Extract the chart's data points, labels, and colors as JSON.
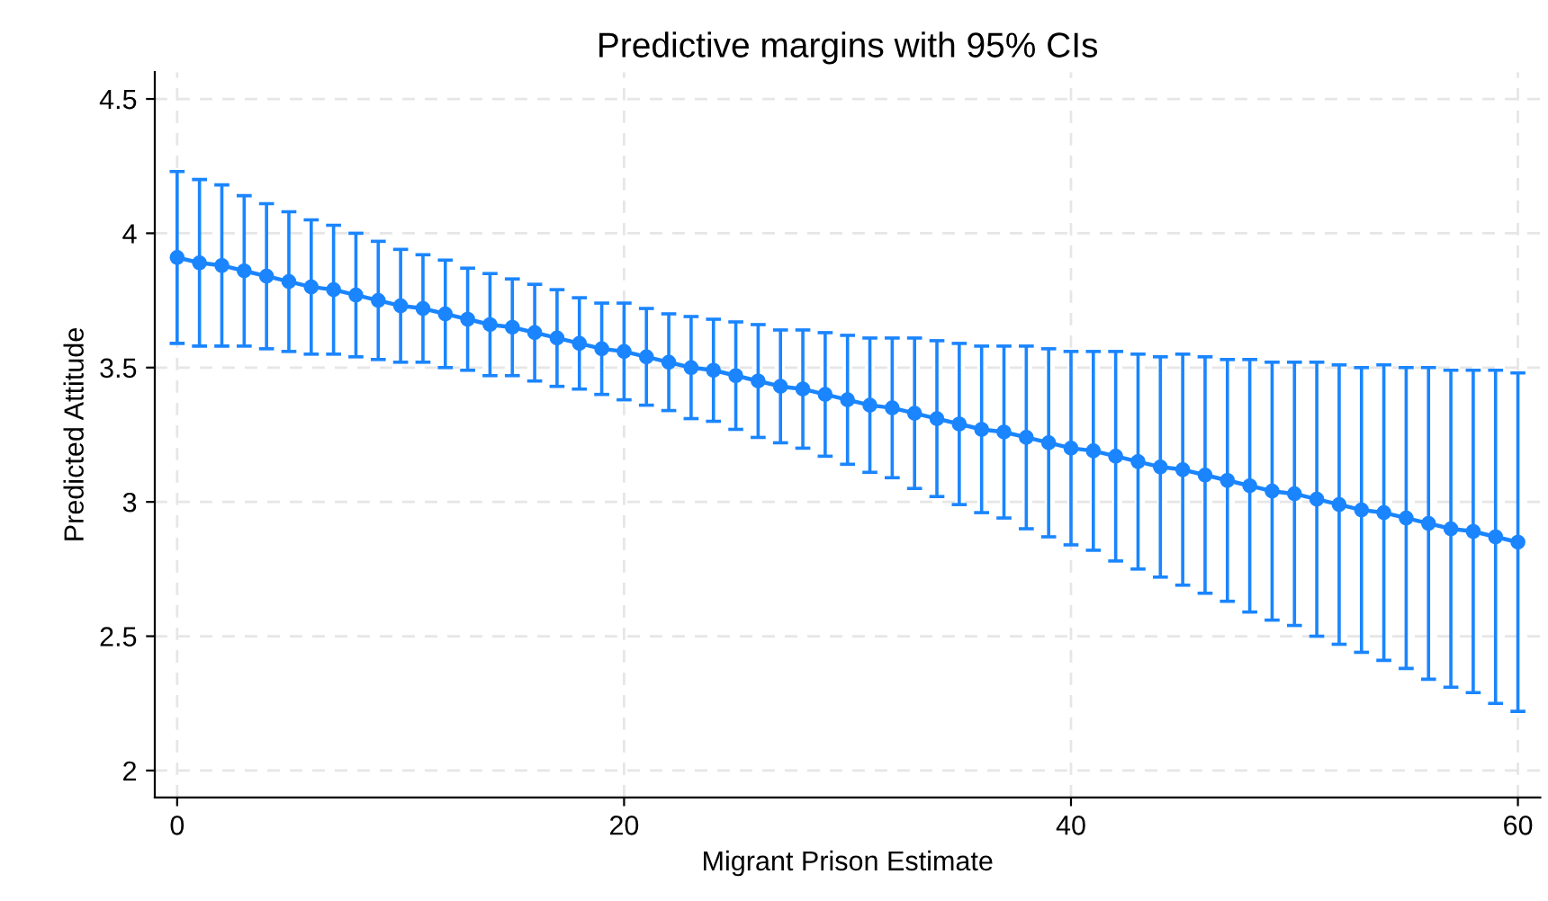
{
  "chart_data": {
    "type": "line",
    "title": "Predictive margins with 95% CIs",
    "xlabel": "Migrant Prison Estimate",
    "ylabel": "Predicted Attitude",
    "x": [
      0,
      1,
      2,
      3,
      4,
      5,
      6,
      7,
      8,
      9,
      10,
      11,
      12,
      13,
      14,
      15,
      16,
      17,
      18,
      19,
      20,
      21,
      22,
      23,
      24,
      25,
      26,
      27,
      28,
      29,
      30,
      31,
      32,
      33,
      34,
      35,
      36,
      37,
      38,
      39,
      40,
      41,
      42,
      43,
      44,
      45,
      46,
      47,
      48,
      49,
      50,
      51,
      52,
      53,
      54,
      55,
      56,
      57,
      58,
      59,
      60
    ],
    "series": [
      {
        "color": "#1a85ff",
        "marker": "circle",
        "line_style": "solid",
        "values": [
          3.91,
          3.89,
          3.88,
          3.86,
          3.84,
          3.82,
          3.8,
          3.79,
          3.77,
          3.75,
          3.73,
          3.72,
          3.7,
          3.68,
          3.66,
          3.65,
          3.63,
          3.61,
          3.59,
          3.57,
          3.56,
          3.54,
          3.52,
          3.5,
          3.49,
          3.47,
          3.45,
          3.43,
          3.42,
          3.4,
          3.38,
          3.36,
          3.35,
          3.33,
          3.31,
          3.29,
          3.27,
          3.26,
          3.24,
          3.22,
          3.2,
          3.19,
          3.17,
          3.15,
          3.13,
          3.12,
          3.1,
          3.08,
          3.06,
          3.04,
          3.03,
          3.01,
          2.99,
          2.97,
          2.96,
          2.94,
          2.92,
          2.9,
          2.89,
          2.87,
          2.85
        ],
        "errors": [
          0.32,
          0.31,
          0.3,
          0.28,
          0.27,
          0.26,
          0.25,
          0.24,
          0.23,
          0.22,
          0.21,
          0.2,
          0.2,
          0.19,
          0.19,
          0.18,
          0.18,
          0.18,
          0.17,
          0.17,
          0.18,
          0.18,
          0.18,
          0.19,
          0.19,
          0.2,
          0.21,
          0.21,
          0.22,
          0.23,
          0.24,
          0.25,
          0.26,
          0.28,
          0.29,
          0.3,
          0.31,
          0.32,
          0.34,
          0.35,
          0.36,
          0.37,
          0.39,
          0.4,
          0.41,
          0.43,
          0.44,
          0.45,
          0.47,
          0.48,
          0.49,
          0.51,
          0.52,
          0.53,
          0.55,
          0.56,
          0.58,
          0.59,
          0.6,
          0.62,
          0.63
        ]
      }
    ],
    "xlim": [
      -1,
      61
    ],
    "xticks": [
      0,
      20,
      40,
      60
    ],
    "ylim": [
      1.9,
      4.6
    ],
    "yticks": [
      2,
      2.5,
      3,
      3.5,
      4,
      4.5
    ],
    "grid": true,
    "legend": false
  }
}
